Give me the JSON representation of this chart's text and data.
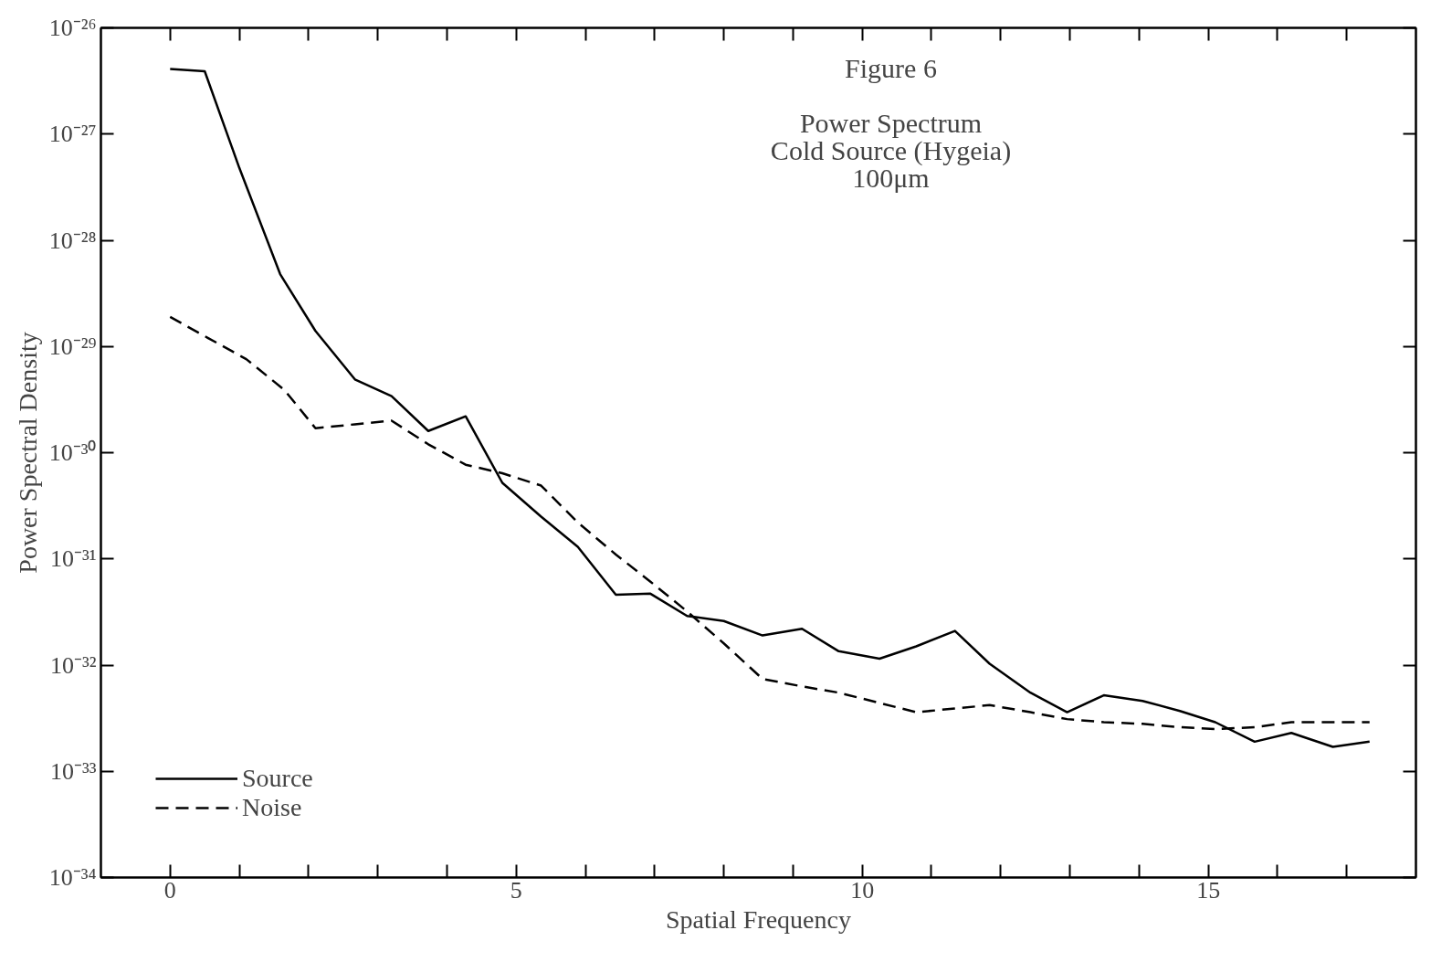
{
  "chart_data": {
    "type": "line",
    "title": "Figure 6",
    "subtitle": "Power Spectrum\nCold Source (Hygeia)\n100μm",
    "xlabel": "Spatial Frequency",
    "ylabel": "Power Spectral Density",
    "log": "y",
    "grid": false,
    "legend": "bottom left",
    "marker": "none",
    "xlim": [
      -1,
      18
    ],
    "ylim": [
      1e-34,
      1e-26
    ],
    "xticks": [
      0,
      {
        "value": 1,
        "label": null
      },
      {
        "value": 2,
        "label": null
      },
      {
        "value": 3,
        "label": null
      },
      {
        "value": 4,
        "label": null
      },
      5,
      {
        "value": 6,
        "label": null
      },
      {
        "value": 7,
        "label": null
      },
      {
        "value": 8,
        "label": null
      },
      {
        "value": 9,
        "label": null
      },
      10,
      {
        "value": 11,
        "label": null
      },
      {
        "value": 12,
        "label": null
      },
      {
        "value": 13,
        "label": null
      },
      {
        "value": 14,
        "label": null
      },
      15,
      {
        "value": 16,
        "label": null
      },
      {
        "value": 17,
        "label": null
      }
    ],
    "yticks": [
      {
        "value": 1e-34,
        "label": "10⁻³⁴"
      },
      {
        "value": 1e-33,
        "label": "10⁻³³"
      },
      {
        "value": 1e-32,
        "label": "10⁻³²"
      },
      {
        "value": 1e-31,
        "label": "10⁻³¹"
      },
      {
        "value": 1e-30,
        "label": "10⁻³⁰"
      },
      {
        "value": 1e-29,
        "label": "10⁻²⁹"
      },
      {
        "value": 1e-28,
        "label": "10⁻²⁸"
      },
      {
        "value": 1e-27,
        "label": "10⁻²⁷"
      },
      {
        "value": 1e-26,
        "label": "10⁻²⁶"
      }
    ],
    "x": [
      0,
      0.5,
      1.0,
      1.59,
      2.1,
      2.67,
      3.2,
      3.73,
      4.27,
      4.8,
      5.36,
      5.89,
      6.44,
      6.94,
      7.47,
      8.0,
      8.56,
      9.13,
      9.66,
      10.25,
      10.78,
      11.34,
      11.84,
      12.43,
      12.96,
      13.49,
      14.05,
      14.59,
      15.1,
      15.67,
      16.2,
      16.8,
      17.33
    ],
    "series": [
      {
        "name": "Source",
        "color": "#000000",
        "line_style": "solid",
        "values": [
          4.1e-27,
          3.9e-27,
          4.8e-28,
          4.8e-29,
          1.4e-29,
          4.9e-30,
          3.4e-30,
          1.6e-30,
          2.2e-30,
          5.2e-31,
          2.5e-31,
          1.3e-31,
          4.6e-32,
          4.7e-32,
          2.9e-32,
          2.6e-32,
          1.9e-32,
          2.2e-32,
          1.35e-32,
          1.15e-32,
          1.5e-32,
          2.1e-32,
          1.03e-32,
          5.5e-33,
          3.6e-33,
          5.2e-33,
          4.6e-33,
          3.7e-33,
          2.9e-33,
          1.9e-33,
          2.3e-33,
          1.7e-33,
          1.9e-33
        ]
      },
      {
        "name": "Noise",
        "color": "#000000",
        "line_style": "dashed",
        "x": [
          0,
          0.55,
          1.1,
          1.65,
          2.1,
          2.67,
          3.2,
          3.73,
          4.27,
          4.8,
          5.36,
          5.89,
          6.44,
          6.94,
          7.47,
          8.0,
          8.56,
          9.13,
          9.66,
          10.25,
          10.78,
          11.34,
          11.84,
          12.43,
          12.96,
          13.49,
          14.05,
          14.59,
          15.1,
          15.67,
          16.2,
          17.33
        ],
        "values": [
          1.9e-29,
          1.2e-29,
          7.6e-30,
          3.9e-30,
          1.7e-30,
          1.85e-30,
          2e-30,
          1.2e-30,
          7.7e-31,
          6.4e-31,
          4.9e-31,
          2.2e-31,
          1.1e-31,
          6.1e-32,
          3.2e-32,
          1.6e-32,
          7.4e-33,
          6.3e-33,
          5.5e-33,
          4.4e-33,
          3.6e-33,
          3.9e-33,
          4.2e-33,
          3.6e-33,
          3.1e-33,
          2.9e-33,
          2.8e-33,
          2.6e-33,
          2.5e-33,
          2.6e-33,
          2.9e-33,
          2.9e-33
        ]
      }
    ]
  }
}
